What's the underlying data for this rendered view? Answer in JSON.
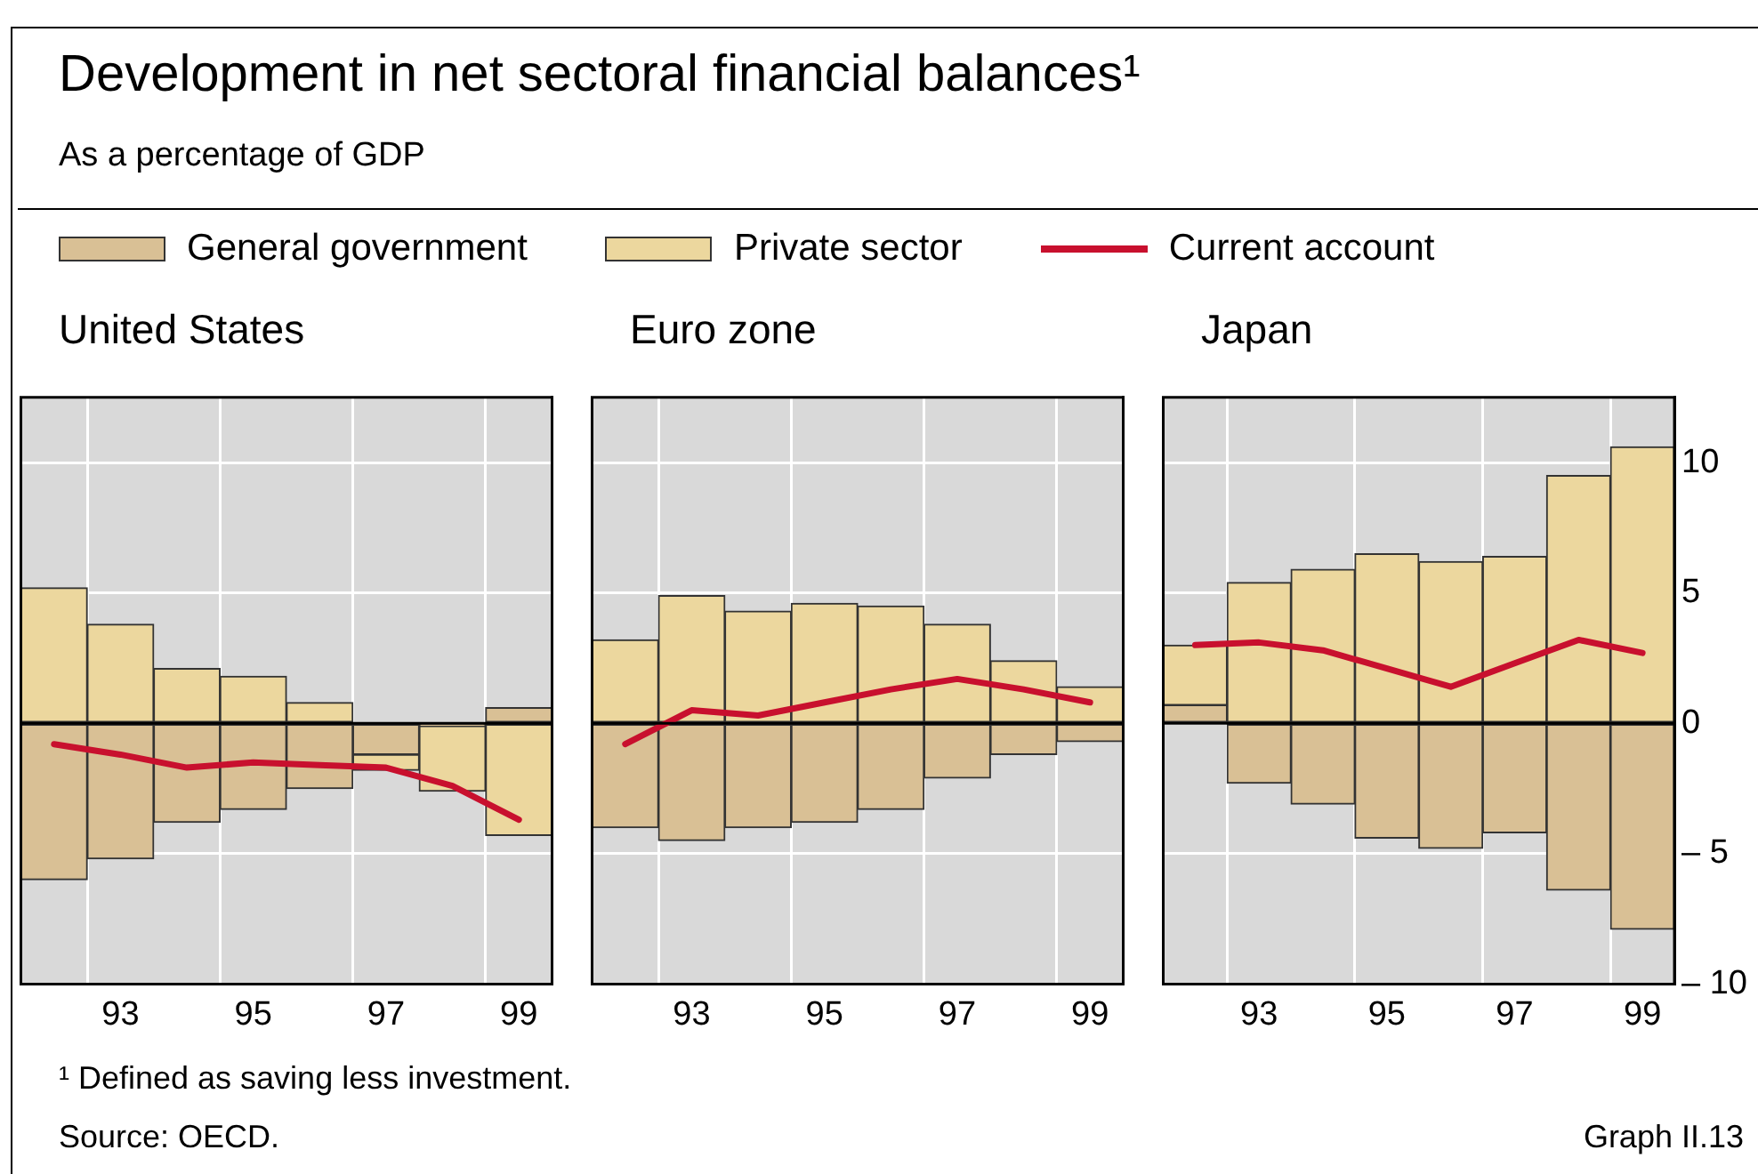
{
  "chart_data": [
    {
      "type": "other",
      "title": "Development in net sectoral financial balances¹",
      "subtitle": "As a percentage of GDP",
      "annotations": [
        "¹ Defined as saving less investment.",
        "Source: OECD.",
        "Graph II.13"
      ]
    },
    {
      "type": "bar",
      "title": "United States",
      "categories": [
        null,
        "93",
        null,
        "95",
        null,
        "97",
        null,
        "99"
      ],
      "stacked": true,
      "legend": "top",
      "grid": true,
      "tick_labels": "x",
      "ylim": [
        -10,
        12.5
      ],
      "yticks": [
        -10,
        -5,
        0,
        5,
        10
      ],
      "ref_lines": [
        {
          "axis": "y",
          "value": 0,
          "color": "#000000"
        }
      ],
      "series": [
        {
          "name": "General government",
          "color": "#d9c095",
          "values": [
            -6.0,
            -5.2,
            -3.8,
            -3.3,
            -2.5,
            -1.2,
            -0.1,
            0.6
          ]
        },
        {
          "name": "Private sector",
          "color": "#ecd79e",
          "values": [
            5.2,
            3.8,
            2.1,
            1.8,
            0.8,
            -0.6,
            -2.5,
            -4.3
          ]
        },
        {
          "name": "Current account",
          "type": "line",
          "color": "#c8102e",
          "values": [
            -0.8,
            -1.2,
            -1.7,
            -1.5,
            -1.6,
            -1.7,
            -2.4,
            -3.7
          ]
        }
      ]
    },
    {
      "type": "bar",
      "title": "Euro zone",
      "categories": [
        null,
        "93",
        null,
        "95",
        null,
        "97",
        null,
        "99"
      ],
      "stacked": true,
      "grid": true,
      "tick_labels": "x",
      "ylim": [
        -10,
        12.5
      ],
      "yticks": [
        -10,
        -5,
        0,
        5,
        10
      ],
      "ref_lines": [
        {
          "axis": "y",
          "value": 0,
          "color": "#000000"
        }
      ],
      "series": [
        {
          "color": "#d9c095",
          "values": [
            -4.0,
            -4.5,
            -4.0,
            -3.8,
            -3.3,
            -2.1,
            -1.2,
            -0.7
          ]
        },
        {
          "color": "#ecd79e",
          "values": [
            3.2,
            4.9,
            4.3,
            4.6,
            4.5,
            3.8,
            2.4,
            1.4
          ]
        },
        {
          "type": "line",
          "color": "#c8102e",
          "values": [
            -0.8,
            0.5,
            0.3,
            0.8,
            1.3,
            1.7,
            1.3,
            0.8
          ]
        }
      ]
    },
    {
      "type": "bar",
      "title": "Japan",
      "categories": [
        null,
        "93",
        null,
        "95",
        null,
        "97",
        null,
        "99"
      ],
      "stacked": true,
      "grid": true,
      "ylim": [
        -10,
        12.5
      ],
      "yticks": [
        {
          "value": -10,
          "label": "– 10"
        },
        {
          "value": -5,
          "label": "– 5"
        },
        0,
        5,
        10
      ],
      "ref_lines": [
        {
          "axis": "y",
          "value": 0,
          "color": "#000000"
        }
      ],
      "series": [
        {
          "color": "#d9c095",
          "values": [
            0.7,
            -2.3,
            -3.1,
            -4.4,
            -4.8,
            -4.2,
            -6.4,
            -7.9
          ]
        },
        {
          "color": "#ecd79e",
          "values": [
            2.3,
            5.4,
            5.9,
            6.5,
            6.2,
            6.4,
            9.5,
            10.6
          ]
        },
        {
          "type": "line",
          "color": "#c8102e",
          "values": [
            3.0,
            3.1,
            2.8,
            2.1,
            1.4,
            2.3,
            3.2,
            2.7
          ]
        }
      ]
    }
  ]
}
